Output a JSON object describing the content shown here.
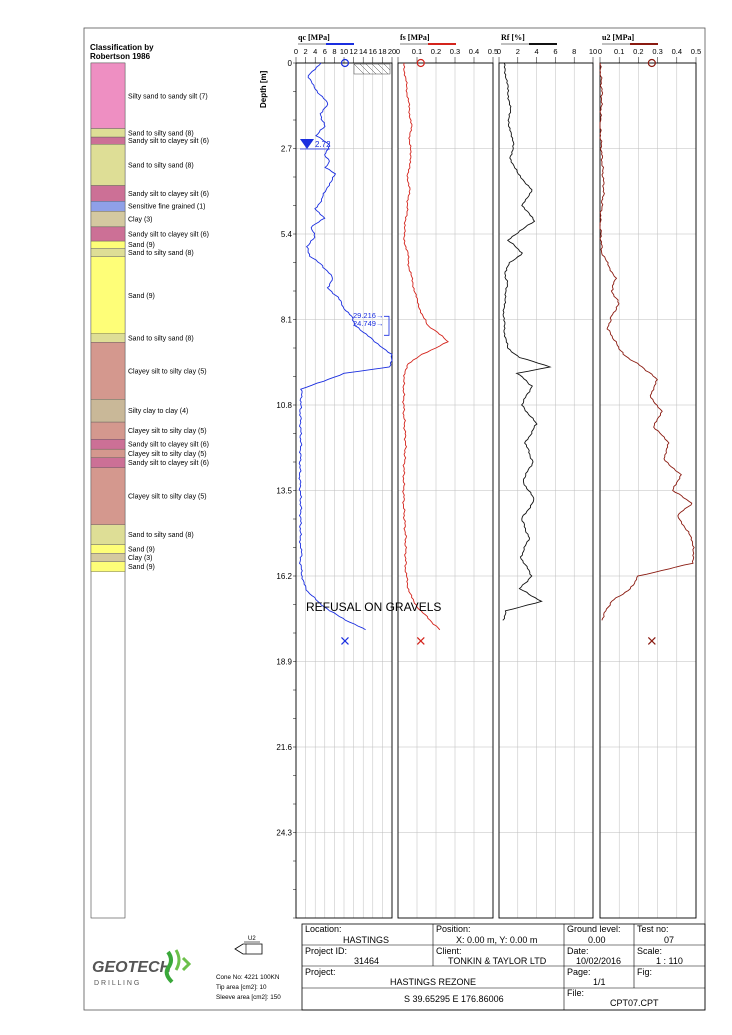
{
  "classification": {
    "title_line1": "Classification by",
    "title_line2": "Robertson 1986",
    "layers": [
      {
        "top": 0.0,
        "bottom": 2.3,
        "label": "Silty sand to sandy silt (7)",
        "color": "#ee8fc2"
      },
      {
        "top": 2.3,
        "bottom": 2.6,
        "label": "Sand to silty sand (8)",
        "color": "#dede96"
      },
      {
        "top": 2.6,
        "bottom": 2.85,
        "label": "Sandy silt to clayey silt (6)",
        "color": "#cc7096"
      },
      {
        "top": 2.85,
        "bottom": 4.3,
        "label": "Sand to silty sand (8)",
        "color": "#dede96"
      },
      {
        "top": 4.3,
        "bottom": 4.85,
        "label": "Sandy silt to clayey silt (6)",
        "color": "#cc7096"
      },
      {
        "top": 4.85,
        "bottom": 5.2,
        "label": "Sensitive fine grained (1)",
        "color": "#8fa0e8"
      },
      {
        "top": 5.2,
        "bottom": 5.75,
        "label": "Clay (3)",
        "color": "#d4c9a0"
      },
      {
        "top": 5.75,
        "bottom": 6.25,
        "label": "Sandy silt to clayey silt (6)",
        "color": "#cc7096"
      },
      {
        "top": 6.25,
        "bottom": 6.5,
        "label": "Sand (9)",
        "color": "#fefe78"
      },
      {
        "top": 6.5,
        "bottom": 6.8,
        "label": "Sand to silty sand (8)",
        "color": "#dede96"
      },
      {
        "top": 6.8,
        "bottom": 9.5,
        "label": "Sand (9)",
        "color": "#fefe78"
      },
      {
        "top": 9.5,
        "bottom": 9.8,
        "label": "Sand to silty sand (8)",
        "color": "#dede96"
      },
      {
        "top": 9.8,
        "bottom": 11.8,
        "label": "Clayey silt to silty clay (5)",
        "color": "#d4988e"
      },
      {
        "top": 11.8,
        "bottom": 12.6,
        "label": "Silty clay to clay (4)",
        "color": "#c9b898"
      },
      {
        "top": 12.6,
        "bottom": 13.2,
        "label": "Clayey silt to silty clay (5)",
        "color": "#d4988e"
      },
      {
        "top": 13.2,
        "bottom": 13.55,
        "label": "Sandy silt to clayey silt (6)",
        "color": "#cc7096"
      },
      {
        "top": 13.55,
        "bottom": 13.85,
        "label": "Clayey silt to silty clay (5)",
        "color": "#d4988e"
      },
      {
        "top": 13.85,
        "bottom": 14.2,
        "label": "Sandy silt to clayey silt (6)",
        "color": "#cc7096"
      },
      {
        "top": 14.2,
        "bottom": 16.2,
        "label": "Clayey silt to silty clay (5)",
        "color": "#d4988e"
      },
      {
        "top": 16.2,
        "bottom": 16.9,
        "label": "Sand to silty sand (8)",
        "color": "#dede96"
      },
      {
        "top": 16.9,
        "bottom": 17.2,
        "label": "Sand (9)",
        "color": "#fefe78"
      },
      {
        "top": 17.2,
        "bottom": 17.5,
        "label": "Clay (3)",
        "color": "#d4c9a0"
      },
      {
        "top": 17.5,
        "bottom": 17.85,
        "label": "Sand (9)",
        "color": "#fefe78"
      }
    ]
  },
  "chart_data": {
    "type": "line",
    "ylabel": "Depth [m]",
    "y_ticks": [
      "0",
      "2.7",
      "5.4",
      "8.1",
      "10.8",
      "13.5",
      "16.2",
      "18.9",
      "21.6",
      "24.3"
    ],
    "y_tick_values": [
      0,
      2.7,
      5.4,
      8.1,
      10.8,
      13.5,
      16.2,
      18.9,
      21.6,
      24.3
    ],
    "ylim": [
      0,
      27.0
    ],
    "tracks": [
      {
        "id": "qc",
        "title": "qc [MPa]",
        "color": "#1a2ee0",
        "xlim": [
          0,
          20
        ],
        "x_ticks": [
          "0",
          "2",
          "4",
          "6",
          "8",
          "10",
          "12",
          "14",
          "16",
          "18",
          "20"
        ],
        "x_tick_values": [
          0,
          2,
          4,
          6,
          8,
          10,
          12,
          14,
          16,
          18,
          20
        ],
        "series": [
          {
            "depth": [
              0,
              0.2,
              0.4,
              0.7,
              1.0,
              1.3,
              1.6,
              2.0,
              2.3,
              2.6,
              2.9,
              3.1,
              3.3,
              3.5,
              3.8,
              4.0,
              4.3,
              4.6,
              4.9,
              5.2,
              5.5,
              5.8,
              6.1,
              6.4,
              6.8,
              7.1,
              7.4,
              7.7,
              8.0,
              8.3,
              8.5,
              8.8,
              9.0,
              9.2,
              9.4,
              9.6,
              9.8,
              10.3,
              11.0,
              12.0,
              13.0,
              14.0,
              15.0,
              15.5,
              15.8,
              16.1,
              16.4,
              16.7,
              17.0,
              17.3,
              17.6,
              17.9
            ],
            "value": [
              5.2,
              4.0,
              2.6,
              3.5,
              5.0,
              6.8,
              5.0,
              6.0,
              4.2,
              7.2,
              5.8,
              7.0,
              6.2,
              8.3,
              7.0,
              6.2,
              5.4,
              4.1,
              5.8,
              3.1,
              4.0,
              2.2,
              3.0,
              5.5,
              7.8,
              6.5,
              8.8,
              9.8,
              11.5,
              12.5,
              14.0,
              16.5,
              18.2,
              20.0,
              20.0,
              19.5,
              10.0,
              1.2,
              0.9,
              1.0,
              0.8,
              1.0,
              0.9,
              1.1,
              0.9,
              1.2,
              1.5,
              2.5,
              4.5,
              7.0,
              10.5,
              14.5
            ]
          }
        ],
        "annotations": [
          {
            "depth": 8.05,
            "text": "29.216→"
          },
          {
            "depth": 8.35,
            "text": "24.749→"
          }
        ],
        "water_level": {
          "depth": 2.72,
          "label": "2.72"
        },
        "reference_marker_value": 10.2,
        "end_marker_value": 10.2
      },
      {
        "id": "fs",
        "title": "fs [MPa]",
        "color": "#d4241c",
        "xlim": [
          0,
          0.5
        ],
        "x_ticks": [
          "0",
          "0.1",
          "0.2",
          "0.3",
          "0.4",
          "0.5"
        ],
        "x_tick_values": [
          0,
          0.1,
          0.2,
          0.3,
          0.4,
          0.5
        ],
        "series": [
          {
            "depth": [
              0,
              0.5,
              1.0,
              1.5,
              2.0,
              2.5,
              3.0,
              3.5,
              4.0,
              4.5,
              5.0,
              5.5,
              6.0,
              6.5,
              7.0,
              7.5,
              8.0,
              8.3,
              8.5,
              8.8,
              9.0,
              9.2,
              9.5,
              10.0,
              11.0,
              12.0,
              13.0,
              14.0,
              15.0,
              16.0,
              16.5,
              17.0,
              17.3,
              17.6,
              17.9
            ],
            "value": [
              0.03,
              0.04,
              0.05,
              0.06,
              0.07,
              0.06,
              0.07,
              0.05,
              0.06,
              0.05,
              0.04,
              0.03,
              0.05,
              0.06,
              0.08,
              0.1,
              0.13,
              0.16,
              0.21,
              0.26,
              0.2,
              0.13,
              0.05,
              0.03,
              0.03,
              0.04,
              0.03,
              0.03,
              0.04,
              0.04,
              0.05,
              0.08,
              0.12,
              0.17,
              0.22
            ]
          }
        ],
        "reference_marker_value": 0.12,
        "end_marker_value": 0.12
      },
      {
        "id": "rf",
        "title": "Rf [%]",
        "color": "#111111",
        "xlim": [
          0,
          10
        ],
        "x_ticks": [
          "0",
          "2",
          "4",
          "6",
          "8",
          "10"
        ],
        "x_tick_values": [
          0,
          2,
          4,
          6,
          8,
          10
        ],
        "series": [
          {
            "depth": [
              0,
              0.5,
              1.0,
              1.5,
              2.0,
              2.5,
              3.0,
              3.5,
              4.0,
              4.5,
              5.0,
              5.3,
              5.6,
              6.0,
              6.3,
              6.6,
              7.0,
              7.5,
              8.0,
              8.5,
              9.0,
              9.3,
              9.6,
              9.8,
              10.2,
              10.8,
              11.4,
              12.0,
              12.6,
              13.2,
              13.8,
              14.4,
              15.0,
              15.6,
              16.2,
              16.6,
              17.0,
              17.3,
              17.6
            ],
            "value": [
              0.5,
              0.8,
              1.0,
              1.2,
              1.0,
              1.6,
              1.2,
              2.0,
              3.5,
              2.5,
              3.8,
              2.2,
              1.0,
              2.5,
              1.2,
              0.6,
              0.9,
              0.6,
              0.5,
              0.6,
              0.9,
              2.2,
              5.5,
              2.0,
              3.5,
              2.4,
              4.0,
              2.8,
              3.6,
              2.5,
              3.8,
              2.4,
              3.2,
              2.3,
              3.5,
              2.2,
              4.5,
              0.8,
              0.4
            ]
          }
        ]
      },
      {
        "id": "u2",
        "title": "u2 [MPa]",
        "color": "#8a1a10",
        "xlim": [
          0,
          0.5
        ],
        "x_ticks": [
          "0",
          "0.1",
          "0.2",
          "0.3",
          "0.4",
          "0.5"
        ],
        "x_tick_values": [
          0,
          0.1,
          0.2,
          0.3,
          0.4,
          0.5
        ],
        "series": [
          {
            "depth": [
              0,
              1.0,
              2.0,
              3.0,
              4.0,
              5.0,
              6.0,
              6.8,
              7.2,
              7.6,
              8.0,
              8.4,
              8.8,
              9.2,
              9.6,
              10.0,
              10.5,
              11.0,
              11.5,
              12.0,
              12.5,
              13.0,
              13.5,
              13.9,
              14.3,
              14.8,
              15.3,
              15.8,
              16.2,
              16.6,
              17.0,
              17.3,
              17.6
            ],
            "value": [
              0.0,
              0.01,
              0.0,
              0.01,
              0.02,
              0.0,
              0.01,
              0.08,
              0.06,
              0.1,
              0.06,
              0.04,
              0.08,
              0.12,
              0.22,
              0.3,
              0.26,
              0.32,
              0.28,
              0.36,
              0.33,
              0.42,
              0.38,
              0.48,
              0.4,
              0.46,
              0.49,
              0.48,
              0.2,
              0.16,
              0.06,
              0.03,
              0.01
            ]
          }
        ],
        "reference_marker_value": 0.27,
        "end_marker_value": 0.27
      }
    ],
    "refusal_text": "REFUSAL ON GRAVELS",
    "refusal_depth": 18.0
  },
  "legend": {
    "cone_label": "U2",
    "cone_no": "Cone No: 4221 100KN",
    "tip_area": "Tip area [cm2]: 10",
    "sleeve_area": "Sleeve area [cm2]: 150",
    "logo_text": "GEOTECH",
    "logo_sub": "D R I L L I N G"
  },
  "title_block": {
    "location_label": "Location:",
    "location": "HASTINGS",
    "position_label": "Position:",
    "position": "X: 0.00 m, Y: 0.00 m",
    "ground_level_label": "Ground level:",
    "ground_level": "0.00",
    "test_no_label": "Test no:",
    "test_no": "07",
    "project_id_label": "Project ID:",
    "project_id": "31464",
    "client_label": "Client:",
    "client": "TONKIN & TAYLOR LTD",
    "date_label": "Date:",
    "date": "10/02/2016",
    "scale_label": "Scale:",
    "scale": "1 : 110",
    "project_label": "Project:",
    "project": "HASTINGS REZONE",
    "page_label": "Page:",
    "page": "1/1",
    "fig_label": "Fig:",
    "coords": "S 39.65295 E 176.86006",
    "file_label": "File:",
    "file": "CPT07.CPT"
  }
}
